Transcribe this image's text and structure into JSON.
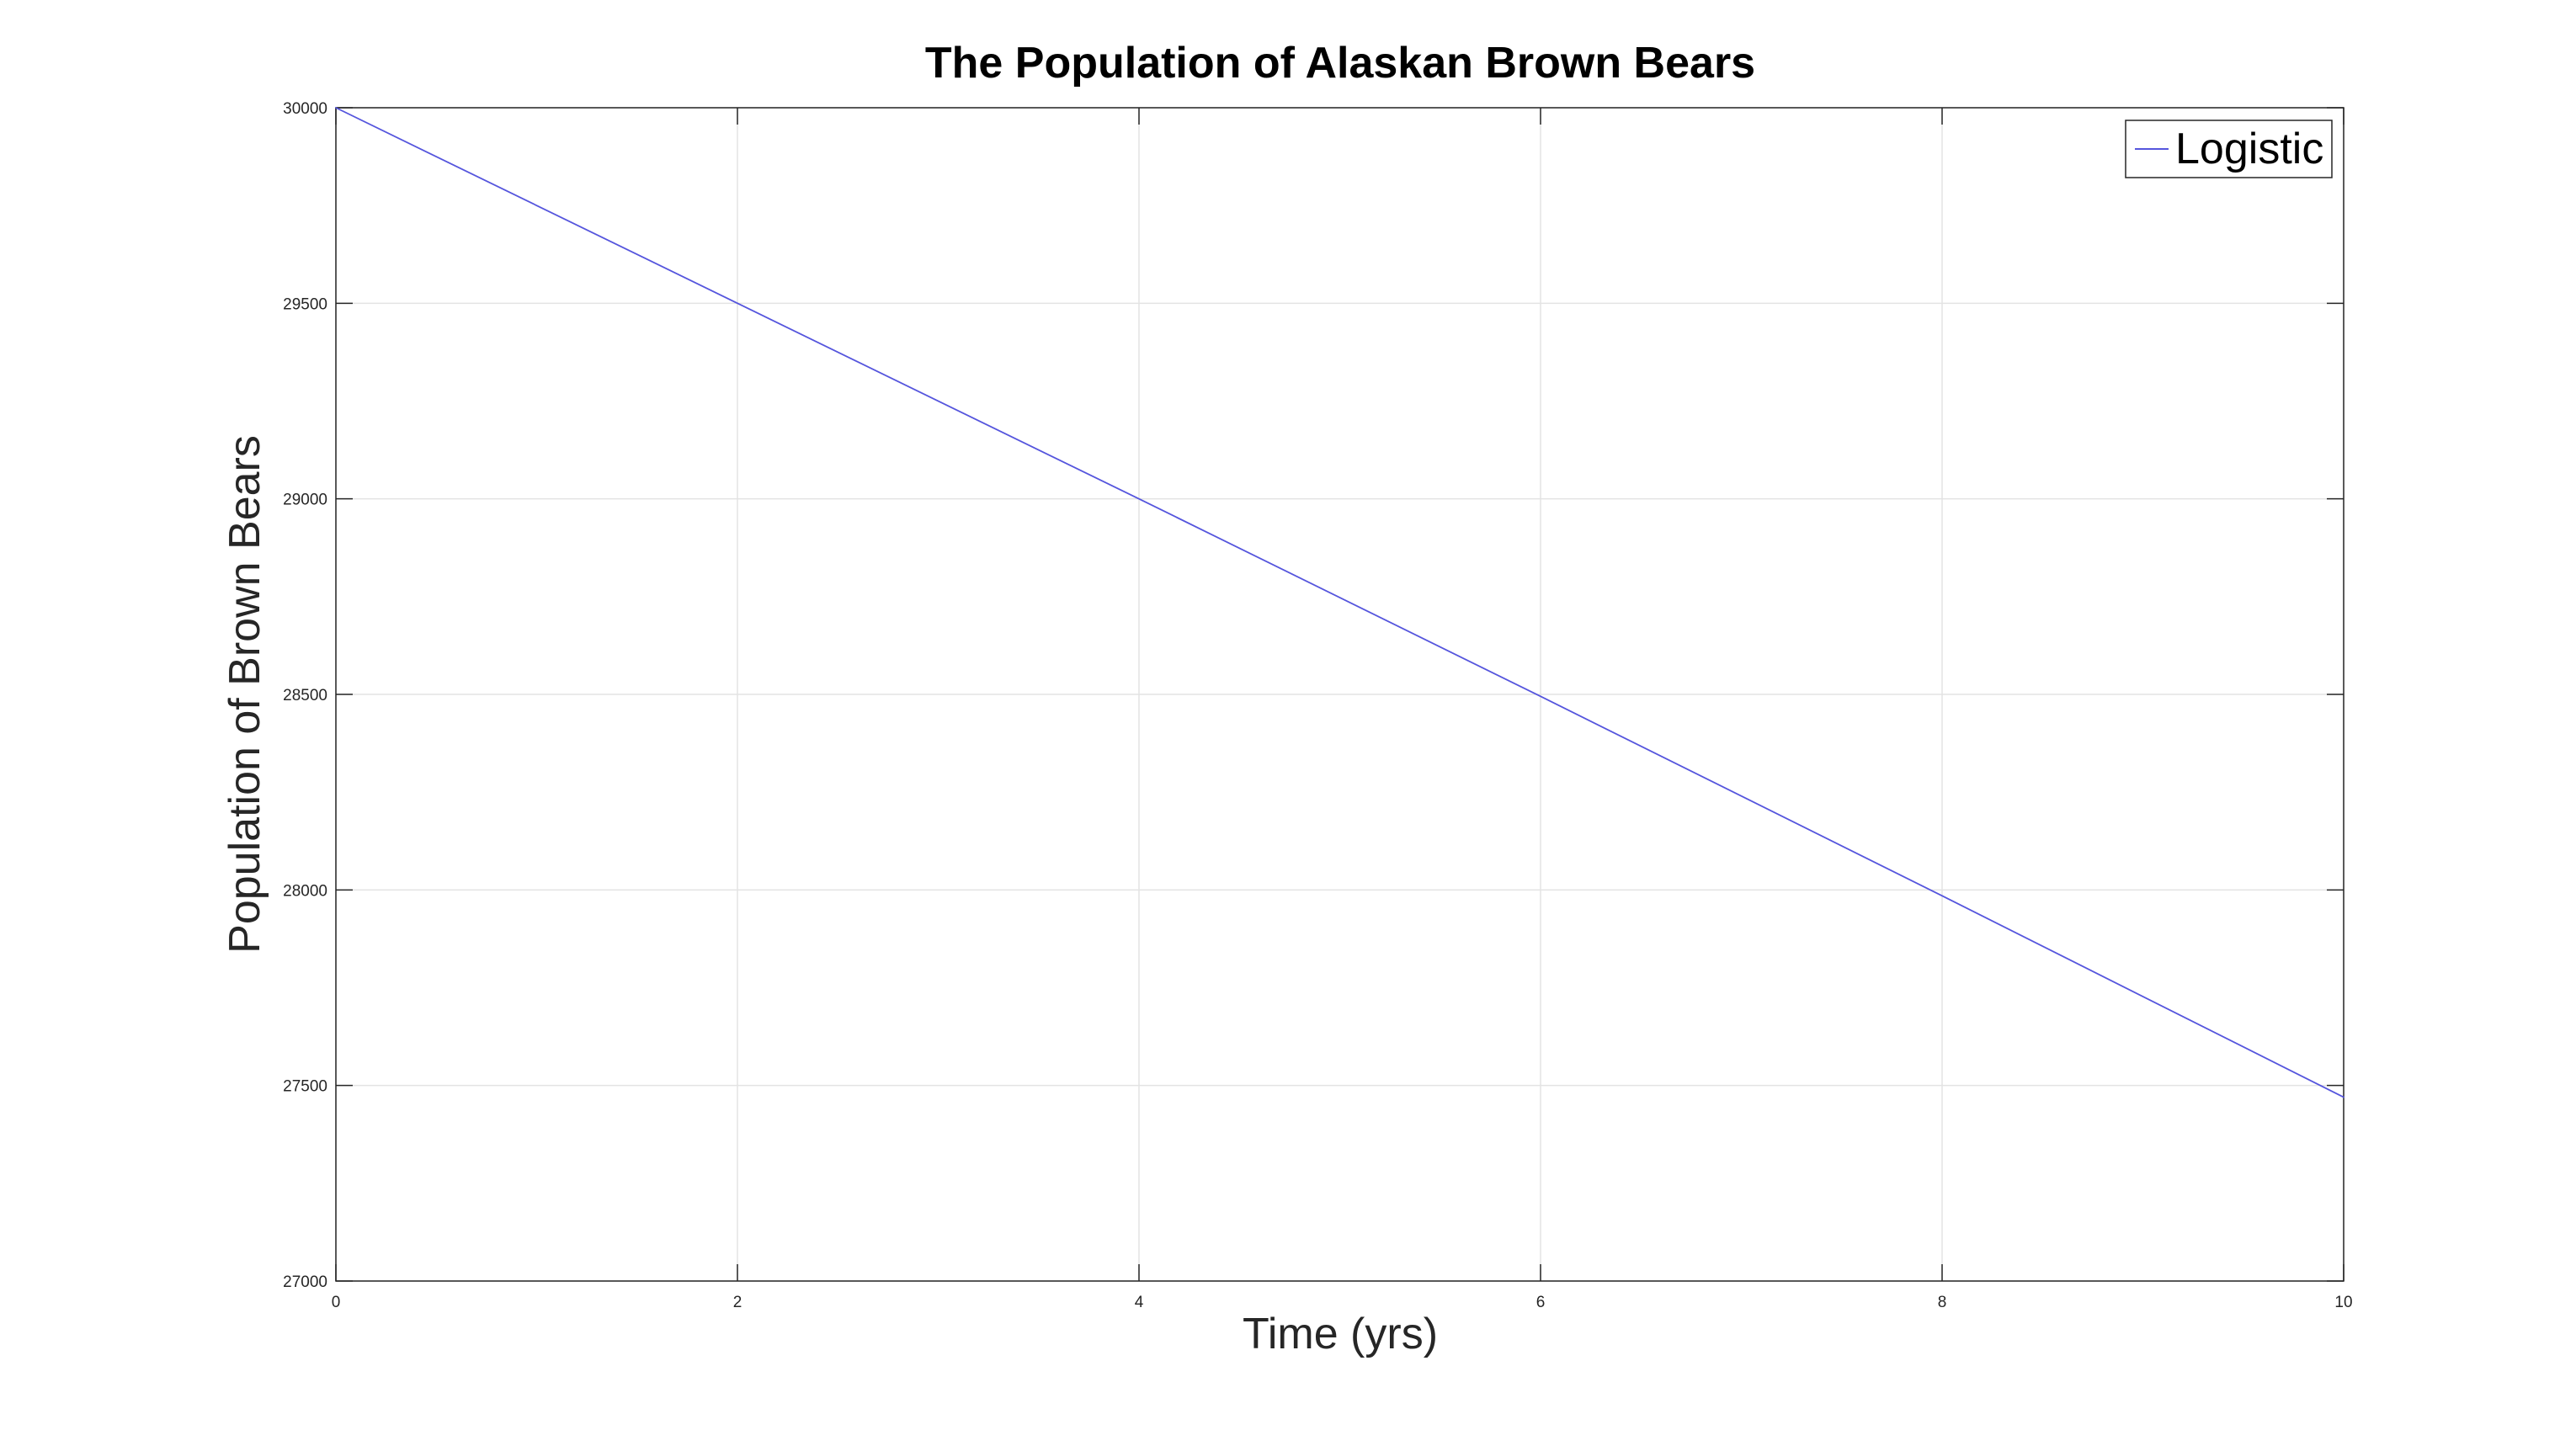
{
  "colors": {
    "background": "#ffffff",
    "axes": "#262626",
    "grid": "#e3e3e3",
    "series": "#5555dd"
  },
  "chart_data": {
    "type": "line",
    "title": "The Population of Alaskan Brown Bears",
    "xlabel": "Time (yrs)",
    "ylabel": "Population of Brown Bears",
    "xlim": [
      0,
      10
    ],
    "ylim": [
      27000,
      30000
    ],
    "xticks": [
      0,
      2,
      4,
      6,
      8,
      10
    ],
    "yticks": [
      27000,
      27500,
      28000,
      28500,
      29000,
      29500,
      30000
    ],
    "xtick_labels": [
      "0",
      "2",
      "4",
      "6",
      "8",
      "10"
    ],
    "ytick_labels": [
      "27000",
      "27500",
      "28000",
      "28500",
      "29000",
      "29500",
      "30000"
    ],
    "grid": true,
    "box": true,
    "legend": {
      "placement": "top-right",
      "entries": [
        "Logistic"
      ]
    },
    "series": [
      {
        "name": "Logistic",
        "color": "#5555dd",
        "x": [
          0,
          2,
          4,
          6,
          8,
          10
        ],
        "y": [
          30000,
          29500,
          29000,
          28495,
          27985,
          27470
        ]
      }
    ]
  }
}
